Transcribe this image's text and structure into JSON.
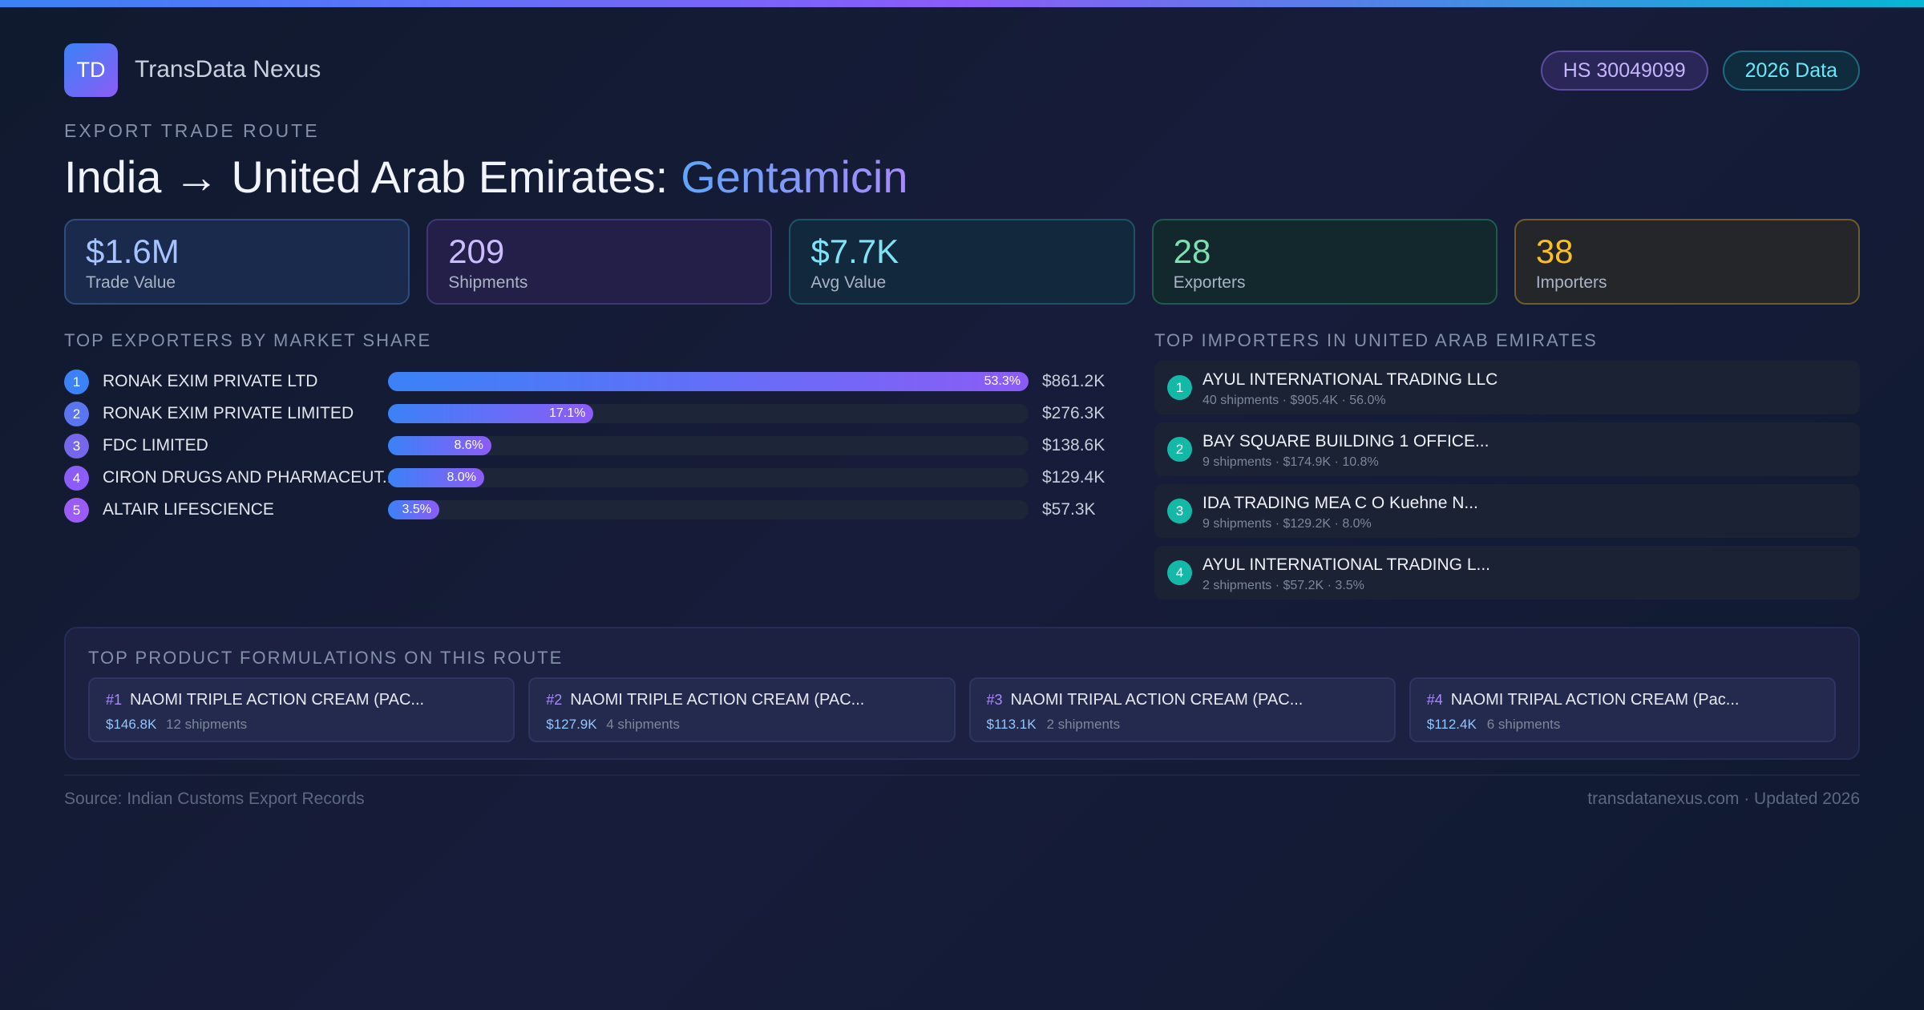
{
  "brand": {
    "logo": "TD",
    "name": "TransData Nexus"
  },
  "badges": [
    "HS 30049099",
    "2026 Data"
  ],
  "header": {
    "eyebrow": "EXPORT TRADE ROUTE",
    "title": "India → United Arab Emirates:",
    "highlight": "Gentamicin"
  },
  "stats": [
    {
      "value": "$1.6M",
      "label": "Trade Value"
    },
    {
      "value": "209",
      "label": "Shipments"
    },
    {
      "value": "$7.7K",
      "label": "Avg Value"
    },
    {
      "value": "28",
      "label": "Exporters"
    },
    {
      "value": "38",
      "label": "Importers"
    }
  ],
  "exporters": {
    "heading": "TOP EXPORTERS BY MARKET SHARE",
    "items": [
      {
        "rank": 1,
        "name": "RONAK EXIM PRIVATE LTD",
        "share": 53.3,
        "share_label": "53.3%",
        "value": "$861.2K"
      },
      {
        "rank": 2,
        "name": "RONAK EXIM PRIVATE LIMITED",
        "share": 17.1,
        "share_label": "17.1%",
        "value": "$276.3K"
      },
      {
        "rank": 3,
        "name": "FDC LIMITED",
        "share": 8.6,
        "share_label": "8.6%",
        "value": "$138.6K"
      },
      {
        "rank": 4,
        "name": "CIRON DRUGS AND PHARMACEUT...",
        "share": 8.0,
        "share_label": "8.0%",
        "value": "$129.4K"
      },
      {
        "rank": 5,
        "name": "ALTAIR LIFESCIENCE",
        "share": 3.5,
        "share_label": "3.5%",
        "value": "$57.3K"
      }
    ]
  },
  "importers": {
    "heading": "TOP IMPORTERS IN UNITED ARAB EMIRATES",
    "items": [
      {
        "rank": 1,
        "name": "AYUL INTERNATIONAL TRADING LLC",
        "details": "40 shipments · $905.4K · 56.0%"
      },
      {
        "rank": 2,
        "name": "BAY SQUARE BUILDING 1 OFFICE...",
        "details": "9 shipments · $174.9K · 10.8%"
      },
      {
        "rank": 3,
        "name": "IDA TRADING MEA C O Kuehne N...",
        "details": "9 shipments · $129.2K · 8.0%"
      },
      {
        "rank": 4,
        "name": "AYUL INTERNATIONAL TRADING L...",
        "details": "2 shipments · $57.2K · 3.5%"
      }
    ]
  },
  "formulations": {
    "heading": "TOP PRODUCT FORMULATIONS ON THIS ROUTE",
    "items": [
      {
        "rank": "#1",
        "name": "NAOMI TRIPLE ACTION CREAM (PAC...",
        "value": "$146.8K",
        "shipments": "12 shipments"
      },
      {
        "rank": "#2",
        "name": "NAOMI TRIPLE ACTION CREAM (PAC...",
        "value": "$127.9K",
        "shipments": "4 shipments"
      },
      {
        "rank": "#3",
        "name": "NAOMI TRIPAL ACTION CREAM (PAC...",
        "value": "$113.1K",
        "shipments": "2 shipments"
      },
      {
        "rank": "#4",
        "name": "NAOMI TRIPAL ACTION CREAM (Pac...",
        "value": "$112.4K",
        "shipments": "6 shipments"
      }
    ]
  },
  "footer": {
    "source": "Source: Indian Customs Export Records",
    "site": "transdatanexus.com · Updated 2026"
  }
}
